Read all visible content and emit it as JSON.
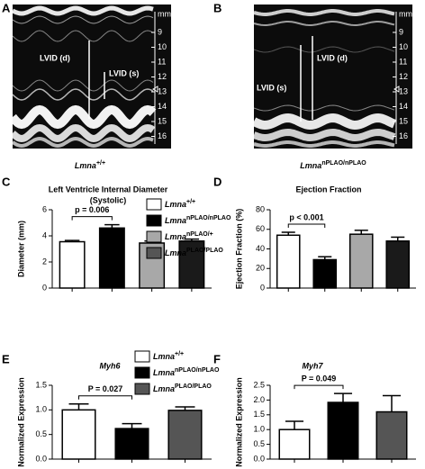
{
  "echo": [
    {
      "letter": "A",
      "unit": "mm",
      "scale": [
        "9",
        "10",
        "11",
        "12",
        "13",
        "14",
        "15",
        "16"
      ],
      "label_d": "LVID (d)",
      "label_s": "LVID (s)",
      "caption": {
        "base": "Lmna",
        "sup": "+/+"
      }
    },
    {
      "letter": "B",
      "unit": "mm",
      "scale": [
        "9",
        "10",
        "11",
        "12",
        "13",
        "14",
        "15",
        "16"
      ],
      "label_d": "LVID (d)",
      "label_s": "LVID (s)",
      "caption": {
        "base": "Lmna",
        "sup": "nPLAO/nPLAO"
      }
    }
  ],
  "chart_data": [
    {
      "type": "bar",
      "letter": "C",
      "title": "Left Ventricle Internal Diameter",
      "subtitle": "(Systolic)",
      "ylabel": "Diameter (mm)",
      "categories": [
        null,
        null,
        null,
        null
      ],
      "values": [
        3.55,
        4.6,
        3.45,
        3.6
      ],
      "errors": [
        0.1,
        0.25,
        0.15,
        0.15
      ],
      "colors": [
        "#ffffff",
        "#000000",
        "#a8a8a8",
        "#1a1a1a"
      ],
      "ylim": [
        0,
        6
      ],
      "yticks": [
        0,
        2,
        4,
        6
      ],
      "annotation": "p = 0.006",
      "legend": [
        {
          "base": "Lmna",
          "sup": "+/+",
          "color": "#ffffff"
        },
        {
          "base": "Lmna",
          "sup": "nPLAO/nPLAO",
          "color": "#000000"
        },
        {
          "base": "Lmna",
          "sup": "nPLAO/+",
          "color": "#a8a8a8"
        },
        {
          "base": "Lmna",
          "sup": "PLAO/PLAO",
          "color": "#555555"
        }
      ]
    },
    {
      "type": "bar",
      "letter": "D",
      "title": "Ejection Fraction",
      "ylabel": "Ejection Fraction (%)",
      "categories": [
        null,
        null,
        null,
        null
      ],
      "values": [
        54,
        29,
        55,
        48
      ],
      "errors": [
        3,
        3,
        4,
        4
      ],
      "colors": [
        "#ffffff",
        "#000000",
        "#a8a8a8",
        "#1a1a1a"
      ],
      "ylim": [
        0,
        80
      ],
      "yticks": [
        0,
        20,
        40,
        60,
        80
      ],
      "annotation": "p < 0.001"
    },
    {
      "type": "bar",
      "letter": "E",
      "title": "Myh6",
      "ylabel": "Normalized Expression",
      "categories": [
        null,
        null,
        null
      ],
      "values": [
        1.0,
        0.62,
        0.99
      ],
      "errors": [
        0.12,
        0.1,
        0.07
      ],
      "colors": [
        "#ffffff",
        "#000000",
        "#555555"
      ],
      "ylim": [
        0,
        1.5
      ],
      "yticks": [
        {
          "value": 0,
          "label": "0.0"
        },
        0.5,
        {
          "value": 1,
          "label": "1.0"
        },
        1.5
      ],
      "annotation": "P = 0.027",
      "legend": [
        {
          "base": "Lmna",
          "sup": "+/+",
          "color": "#ffffff"
        },
        {
          "base": "Lmna",
          "sup": "nPLAO/nPLAO",
          "color": "#000000"
        },
        {
          "base": "Lmna",
          "sup": "PLAO/PLAO",
          "color": "#555555"
        }
      ]
    },
    {
      "type": "bar",
      "letter": "F",
      "title": "Myh7",
      "ylabel": "Normalized Expression",
      "categories": [
        null,
        null,
        null
      ],
      "values": [
        1.0,
        1.92,
        1.6
      ],
      "errors": [
        0.28,
        0.3,
        0.55
      ],
      "colors": [
        "#ffffff",
        "#000000",
        "#555555"
      ],
      "ylim": [
        0,
        2.5
      ],
      "yticks": [
        {
          "value": 0,
          "label": "0.0"
        },
        0.5,
        {
          "value": 1,
          "label": "1.0"
        },
        1.5,
        {
          "value": 2,
          "label": "2.0"
        },
        2.5
      ],
      "annotation": "P = 0.049"
    }
  ]
}
